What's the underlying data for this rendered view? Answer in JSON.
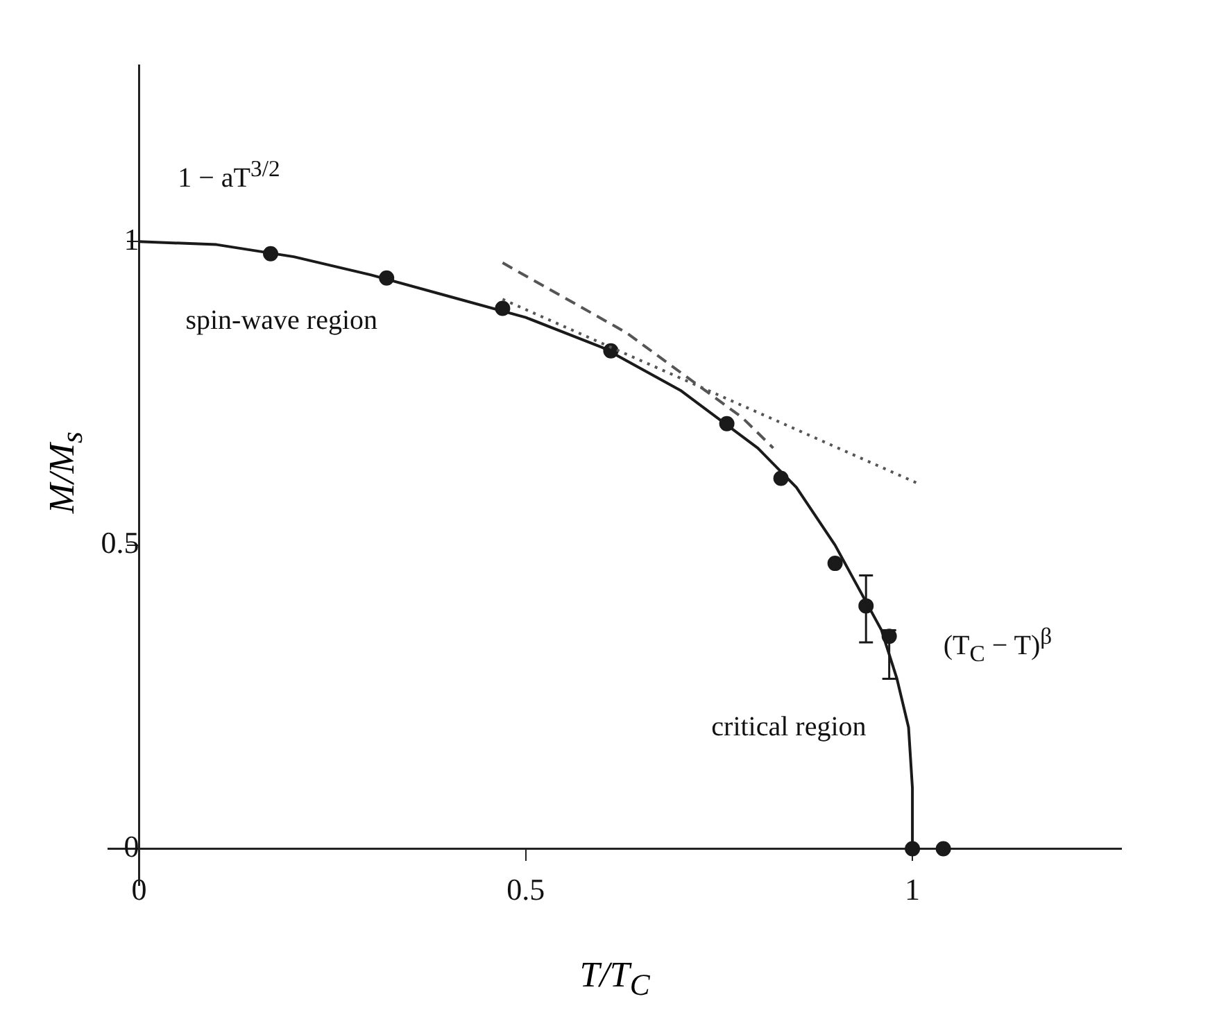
{
  "chart_data": {
    "type": "scatter",
    "xlabel": "T/T$_{C}$",
    "ylabel": "M/M$_{s}$",
    "xlim": [
      -0.04,
      1.27
    ],
    "ylim": [
      -0.06,
      1.29
    ],
    "xticks": [
      0,
      0.5,
      1
    ],
    "yticks": [
      0,
      0.5,
      1
    ],
    "grid": false,
    "legend": false,
    "series": [
      {
        "type": "line",
        "color": "#1a1a1a",
        "marker": "none",
        "line_style": "solid",
        "x": [
          0,
          0.1,
          0.2,
          0.3,
          0.4,
          0.5,
          0.6,
          0.7,
          0.8,
          0.85,
          0.9,
          0.93,
          0.96,
          0.98,
          0.995,
          1.0,
          1.0
        ],
        "values": [
          1,
          0.995,
          0.975,
          0.945,
          0.91,
          0.875,
          0.825,
          0.755,
          0.66,
          0.595,
          0.5,
          0.43,
          0.36,
          0.28,
          0.2,
          0.1,
          0
        ]
      },
      {
        "type": "line",
        "color": "#555555",
        "marker": "none",
        "line_style": "dashed",
        "x": [
          0.47,
          0.63,
          0.78,
          0.82
        ],
        "values": [
          0.965,
          0.85,
          0.71,
          0.66
        ]
      },
      {
        "type": "line",
        "color": "#555555",
        "marker": "none",
        "line_style": "dotted",
        "x": [
          0.47,
          1.01
        ],
        "values": [
          0.905,
          0.6
        ]
      },
      {
        "color": "#1a1a1a",
        "marker": "circle",
        "x": [
          0.17,
          0.32,
          0.47,
          0.61,
          0.76,
          0.83,
          0.9,
          0.94,
          0.97,
          1.0,
          1.04
        ],
        "values": [
          0.98,
          0.94,
          0.89,
          0.82,
          0.7,
          0.61,
          0.47,
          0.4,
          0.35,
          0,
          0
        ],
        "errors": [
          null,
          null,
          null,
          null,
          null,
          null,
          null,
          [
            0.34,
            0.45
          ],
          [
            0.28,
            0.36
          ],
          null,
          null
        ]
      }
    ],
    "annotations": [
      "1 − aT$^{3/2}$",
      "spin-wave region",
      "(T$_{C}$ − T)$^{β}$",
      "critical region"
    ]
  }
}
